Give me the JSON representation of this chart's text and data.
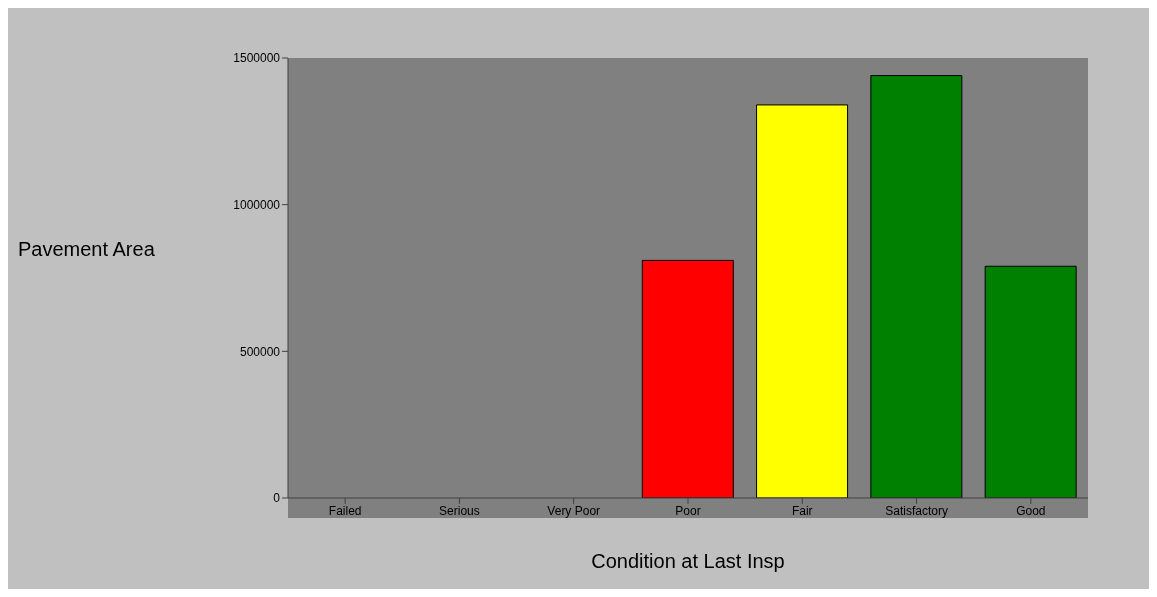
{
  "chart_data": {
    "type": "bar",
    "xlabel": "Condition at Last Insp",
    "ylabel": "Pavement Area",
    "categories": [
      "Failed",
      "Serious",
      "Very Poor",
      "Poor",
      "Fair",
      "Satisfactory",
      "Good"
    ],
    "values": [
      0,
      0,
      0,
      810000,
      1340000,
      1440000,
      790000
    ],
    "colors": [
      "#404040",
      "#404000",
      "#400000",
      "#ff0000",
      "#ffff00",
      "#008000",
      "#008000"
    ],
    "ylim": [
      0,
      1500000
    ],
    "yticks": [
      0,
      500000,
      1000000,
      1500000
    ],
    "grid": false,
    "legend": false
  }
}
